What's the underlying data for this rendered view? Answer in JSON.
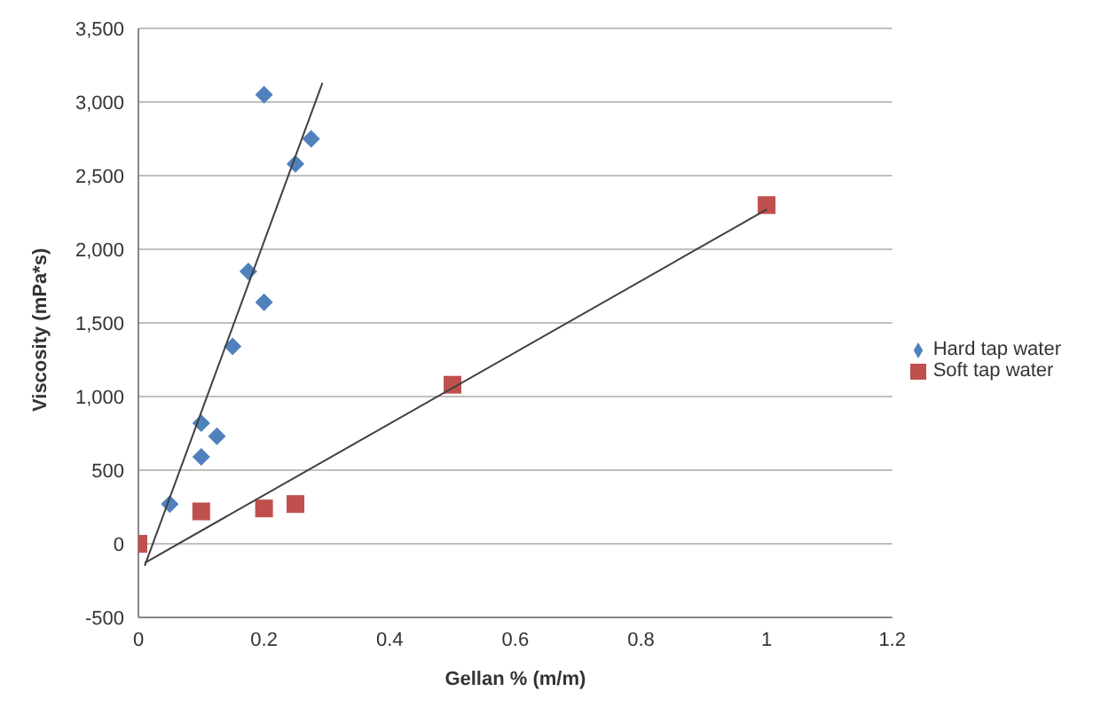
{
  "chart_data": {
    "type": "scatter",
    "xlabel": "Gellan % (m/m)",
    "ylabel": "Viscosity (mPa*s)",
    "xlim": [
      0,
      1.2
    ],
    "xticks": [
      0,
      0.2,
      0.4,
      0.6,
      0.8,
      1,
      1.2
    ],
    "ylim": [
      -500,
      3500
    ],
    "yticks": [
      -500,
      0,
      500,
      {
        "value": 1000,
        "label": "1,000"
      },
      {
        "value": 1500,
        "label": "1,500"
      },
      {
        "value": 2000,
        "label": "2,000"
      },
      {
        "value": 2500,
        "label": "2,500"
      },
      {
        "value": 3000,
        "label": "3,000"
      },
      {
        "value": 3500,
        "label": "3,500"
      }
    ],
    "grid": "y",
    "legend": "right",
    "series": [
      {
        "name": "Hard tap water",
        "color": "#4f81bd",
        "marker": "diamond",
        "x": [
          0.05,
          0.1,
          0.1,
          0.125,
          0.15,
          0.175,
          0.2,
          0.2,
          0.25,
          0.275
        ],
        "values": [
          270,
          820,
          590,
          730,
          1340,
          1850,
          1640,
          3050,
          2580,
          2750
        ]
      },
      {
        "name": "Soft tap water",
        "color": "#c0504d",
        "marker": "square",
        "x": [
          0,
          0.1,
          0.2,
          0.25,
          0.5,
          1
        ],
        "values": [
          0,
          220,
          240,
          270,
          1080,
          2300
        ]
      },
      {
        "type": "line",
        "color": "#404040",
        "marker": "none",
        "x": [
          0.01,
          0.293
        ],
        "values": [
          -150,
          3130
        ]
      },
      {
        "type": "line",
        "color": "#404040",
        "marker": "none",
        "x": [
          0.01,
          1
        ],
        "values": [
          -130,
          2270
        ]
      }
    ]
  }
}
